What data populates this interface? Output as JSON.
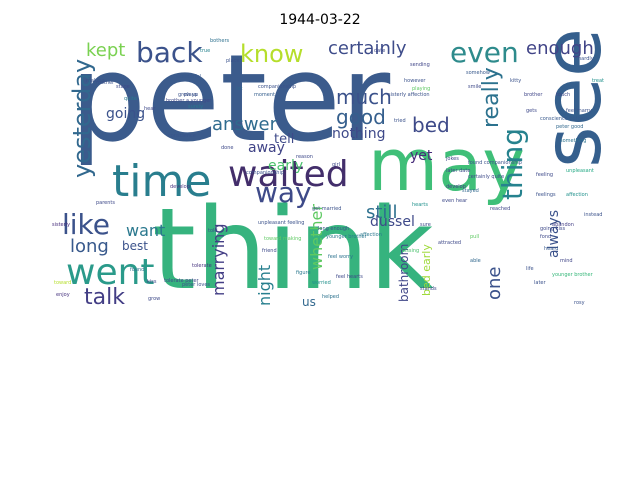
{
  "title": "1944-03-22",
  "words": [
    {
      "t": "peter",
      "c": "#3b5b8c"
    },
    {
      "t": "think",
      "c": "#36b37e"
    },
    {
      "t": "see",
      "c": "#355f8d"
    },
    {
      "t": "may",
      "c": "#3fbf78"
    },
    {
      "t": "time",
      "c": "#297e8e"
    },
    {
      "t": "waited",
      "c": "#432e6b"
    },
    {
      "t": "went",
      "c": "#2a9a8a"
    },
    {
      "t": "back",
      "c": "#3b528b"
    },
    {
      "t": "know",
      "c": "#b5de2b"
    },
    {
      "t": "even",
      "c": "#2e8b8c"
    },
    {
      "t": "way",
      "c": "#3e4a89"
    },
    {
      "t": "like",
      "c": "#3b528b"
    },
    {
      "t": "yesterday",
      "c": "#31688e"
    },
    {
      "t": "thing",
      "c": "#26828e"
    },
    {
      "t": "really",
      "c": "#2c728e"
    },
    {
      "t": "talk",
      "c": "#433e85"
    },
    {
      "t": "certainly",
      "c": "#3e4c8a"
    },
    {
      "t": "enough",
      "c": "#414487"
    },
    {
      "t": "much",
      "c": "#3b528b"
    },
    {
      "t": "good",
      "c": "#355f8d"
    },
    {
      "t": "bed",
      "c": "#3e4a89"
    },
    {
      "t": "answer",
      "c": "#2f6b8e"
    },
    {
      "t": "kept",
      "c": "#7ad151"
    },
    {
      "t": "going",
      "c": "#3b528b"
    },
    {
      "t": "want",
      "c": "#2a788e"
    },
    {
      "t": "long",
      "c": "#38598c"
    },
    {
      "t": "marrying",
      "c": "#433e85"
    },
    {
      "t": "night",
      "c": "#277f8e"
    },
    {
      "t": "whether",
      "c": "#5ec962"
    },
    {
      "t": "still",
      "c": "#2d708e"
    },
    {
      "t": "one",
      "c": "#3b528b"
    },
    {
      "t": "always",
      "c": "#3b528b"
    },
    {
      "t": "nothing",
      "c": "#3e4989"
    },
    {
      "t": "dussel",
      "c": "#3e4989"
    },
    {
      "t": "bathroom",
      "c": "#404688"
    },
    {
      "t": "away",
      "c": "#414487"
    },
    {
      "t": "early",
      "c": "#4ac16d"
    },
    {
      "t": "tell",
      "c": "#3e4a89"
    },
    {
      "t": "best",
      "c": "#3b528b"
    },
    {
      "t": "us",
      "c": "#31688e"
    },
    {
      "t": "bed early",
      "c": "#9fda3a"
    },
    {
      "t": "yet",
      "c": "#472c7a"
    },
    {
      "t": "brother",
      "c": "#404688"
    },
    {
      "t": "develop",
      "c": "#46327e"
    },
    {
      "t": "conscience",
      "c": "#39558c"
    },
    {
      "t": "feeling",
      "c": "#3e4a89"
    },
    {
      "t": "affection",
      "c": "#2a788e"
    },
    {
      "t": "unpleasant",
      "c": "#22a884"
    },
    {
      "t": "tolerate",
      "c": "#46337e"
    },
    {
      "t": "younger brother",
      "c": "#35b779"
    },
    {
      "t": "companionship",
      "c": "#3b528b"
    },
    {
      "t": "worried",
      "c": "#21918c"
    },
    {
      "t": "sisterly",
      "c": "#472d7b"
    },
    {
      "t": "found",
      "c": "#2c728e"
    },
    {
      "t": "attracted",
      "c": "#3e4989"
    },
    {
      "t": "reached",
      "c": "#404688"
    },
    {
      "t": "lot",
      "c": "#31688e"
    },
    {
      "t": "kissing",
      "c": "#4ac16d"
    },
    {
      "t": "later",
      "c": "#3b528b"
    },
    {
      "t": "grow",
      "c": "#3e4a89"
    },
    {
      "t": "helped",
      "c": "#2c728e"
    },
    {
      "t": "girl",
      "c": "#3e4989"
    },
    {
      "t": "figure",
      "c": "#2a788e"
    },
    {
      "t": "enjoy",
      "c": "#46327e"
    },
    {
      "t": "toward",
      "c": "#b5de2b"
    },
    {
      "t": "place",
      "c": "#3b528b"
    },
    {
      "t": "parents",
      "c": "#3e4989"
    },
    {
      "t": "moment",
      "c": "#355f8d"
    },
    {
      "t": "making",
      "c": "#3b528b"
    },
    {
      "t": "true",
      "c": "#26828e"
    },
    {
      "t": "wonderful",
      "c": "#38598c"
    },
    {
      "t": "bothers",
      "c": "#2d708e"
    },
    {
      "t": "sending",
      "c": "#404688"
    },
    {
      "t": "surely",
      "c": "#2a788e"
    },
    {
      "t": "somehow",
      "c": "#38598c"
    },
    {
      "t": "playing",
      "c": "#5ec962"
    },
    {
      "t": "stayed",
      "c": "#31688e"
    },
    {
      "t": "date",
      "c": "#3e4989"
    },
    {
      "t": "however",
      "c": "#3b528b"
    },
    {
      "t": "hearts",
      "c": "#21918c"
    },
    {
      "t": "abandon",
      "c": "#433e85"
    },
    {
      "t": "friend",
      "c": "#3e4a89"
    },
    {
      "t": "quite",
      "c": "#2a788e"
    },
    {
      "t": "touch",
      "c": "#3e4989"
    },
    {
      "t": "tried",
      "c": "#3b528b"
    },
    {
      "t": "heard",
      "c": "#38598c"
    },
    {
      "t": "fond",
      "c": "#3e4989"
    },
    {
      "t": "hardly",
      "c": "#3b528b"
    },
    {
      "t": "pull",
      "c": "#5ec962"
    },
    {
      "t": "sure",
      "c": "#3e4989"
    },
    {
      "t": "instead",
      "c": "#3b528b"
    },
    {
      "t": "something",
      "c": "#2c728e"
    },
    {
      "t": "stage",
      "c": "#3e4989"
    },
    {
      "t": "treat",
      "c": "#21918c"
    },
    {
      "t": "kitty",
      "c": "#3b528b"
    },
    {
      "t": "smile",
      "c": "#3e4989"
    },
    {
      "t": "mind",
      "c": "#404688"
    },
    {
      "t": "rosy",
      "c": "#3b528b"
    },
    {
      "t": "reason",
      "c": "#3e4989"
    },
    {
      "t": "mother",
      "c": "#3b528b"
    },
    {
      "t": "hear",
      "c": "#3e4989"
    },
    {
      "t": "able",
      "c": "#31688e"
    },
    {
      "t": "feelings",
      "c": "#3b528b"
    },
    {
      "t": "jokes",
      "c": "#404688"
    },
    {
      "t": "brother a younger",
      "c": "#3e4989"
    },
    {
      "t": "companionship",
      "c": "#3b528b"
    },
    {
      "t": "younger brother",
      "c": "#2a788e"
    },
    {
      "t": "sisterly affection",
      "c": "#3b528b"
    },
    {
      "t": "conscience bothers",
      "c": "#38598c"
    },
    {
      "t": "tolerate peter",
      "c": "#3e4989"
    },
    {
      "t": "peter loves",
      "c": "#3b528b"
    },
    {
      "t": "feel worry",
      "c": "#2c728e"
    },
    {
      "t": "feel hearts",
      "c": "#3e4989"
    },
    {
      "t": "toward making",
      "c": "#5ec962"
    },
    {
      "t": "found companionship",
      "c": "#3b528b"
    },
    {
      "t": "going kiss",
      "c": "#3e4989"
    },
    {
      "t": "get married",
      "c": "#3b528b"
    },
    {
      "t": "even hear",
      "c": "#3e4989"
    },
    {
      "t": "peter good",
      "c": "#31688e"
    },
    {
      "t": "unpleasant feeling",
      "c": "#3b528b"
    },
    {
      "t": "certainly quite",
      "c": "#3e4989"
    },
    {
      "t": "long enough",
      "c": "#3b528b"
    },
    {
      "t": "later date",
      "c": "#3e4989"
    },
    {
      "t": "feel marry",
      "c": "#3b528b"
    },
    {
      "t": "affection",
      "c": "#21918c"
    },
    {
      "t": "develop",
      "c": "#433e85"
    },
    {
      "t": "grew up",
      "c": "#3b528b"
    },
    {
      "t": "gets",
      "c": "#3e4989"
    },
    {
      "t": "told",
      "c": "#3b528b"
    },
    {
      "t": "stands",
      "c": "#3e4989"
    },
    {
      "t": "life",
      "c": "#3b528b"
    },
    {
      "t": "kiss",
      "c": "#3e4989"
    },
    {
      "t": "plays",
      "c": "#3b528b"
    },
    {
      "t": "done",
      "c": "#3e4989"
    }
  ]
}
